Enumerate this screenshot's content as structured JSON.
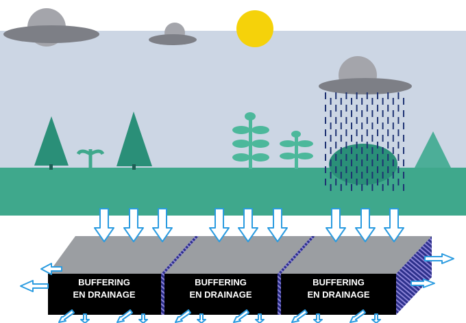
{
  "blocks": [
    {
      "label": [
        "BUFFERING",
        "EN DRAINAGE"
      ]
    },
    {
      "label": [
        "BUFFERING",
        "EN DRAINAGE"
      ]
    },
    {
      "label": [
        "BUFFERING",
        "EN DRAINAGE"
      ]
    }
  ]
}
